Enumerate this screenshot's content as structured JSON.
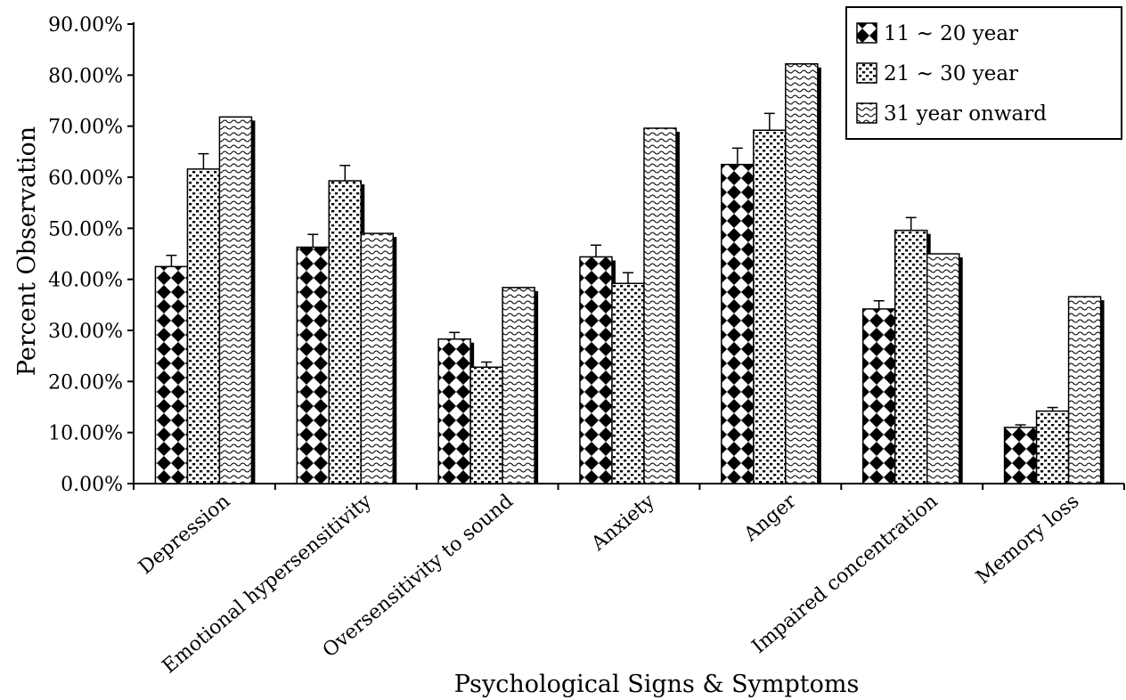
{
  "chart_data": {
    "type": "bar",
    "title": "",
    "xlabel": "Psychological Signs & Symptoms",
    "ylabel": "Percent Observation",
    "ylim": [
      0,
      90
    ],
    "yticks": [
      "0.00%",
      "10.00%",
      "20.00%",
      "30.00%",
      "40.00%",
      "50.00%",
      "60.00%",
      "70.00%",
      "80.00%",
      "90.00%"
    ],
    "grid": false,
    "legend_position": "top-right",
    "categories": [
      "Depression",
      "Emotional hypersensitivity",
      "Oversensitivity to sound",
      "Anxiety",
      "Anger",
      "Impaired concentration",
      "Memory loss"
    ],
    "series": [
      {
        "name": "11 ~ 20 year",
        "pattern": "diamond-checker",
        "values": [
          42.5,
          46.3,
          28.3,
          44.4,
          62.5,
          34.2,
          11.0
        ],
        "errors": [
          2.2,
          2.5,
          1.3,
          2.3,
          3.2,
          1.6,
          0.5
        ]
      },
      {
        "name": "21 ~ 30 year",
        "pattern": "dots",
        "values": [
          61.6,
          59.3,
          22.8,
          39.2,
          69.2,
          49.6,
          14.2
        ],
        "errors": [
          3.0,
          3.0,
          1.0,
          2.1,
          3.3,
          2.5,
          0.7
        ]
      },
      {
        "name": "31 year onward",
        "pattern": "waves",
        "values": [
          71.8,
          49.0,
          38.4,
          69.6,
          82.2,
          45.0,
          36.6
        ],
        "errors": [
          0,
          0,
          0,
          0,
          0,
          0,
          0
        ]
      }
    ]
  }
}
